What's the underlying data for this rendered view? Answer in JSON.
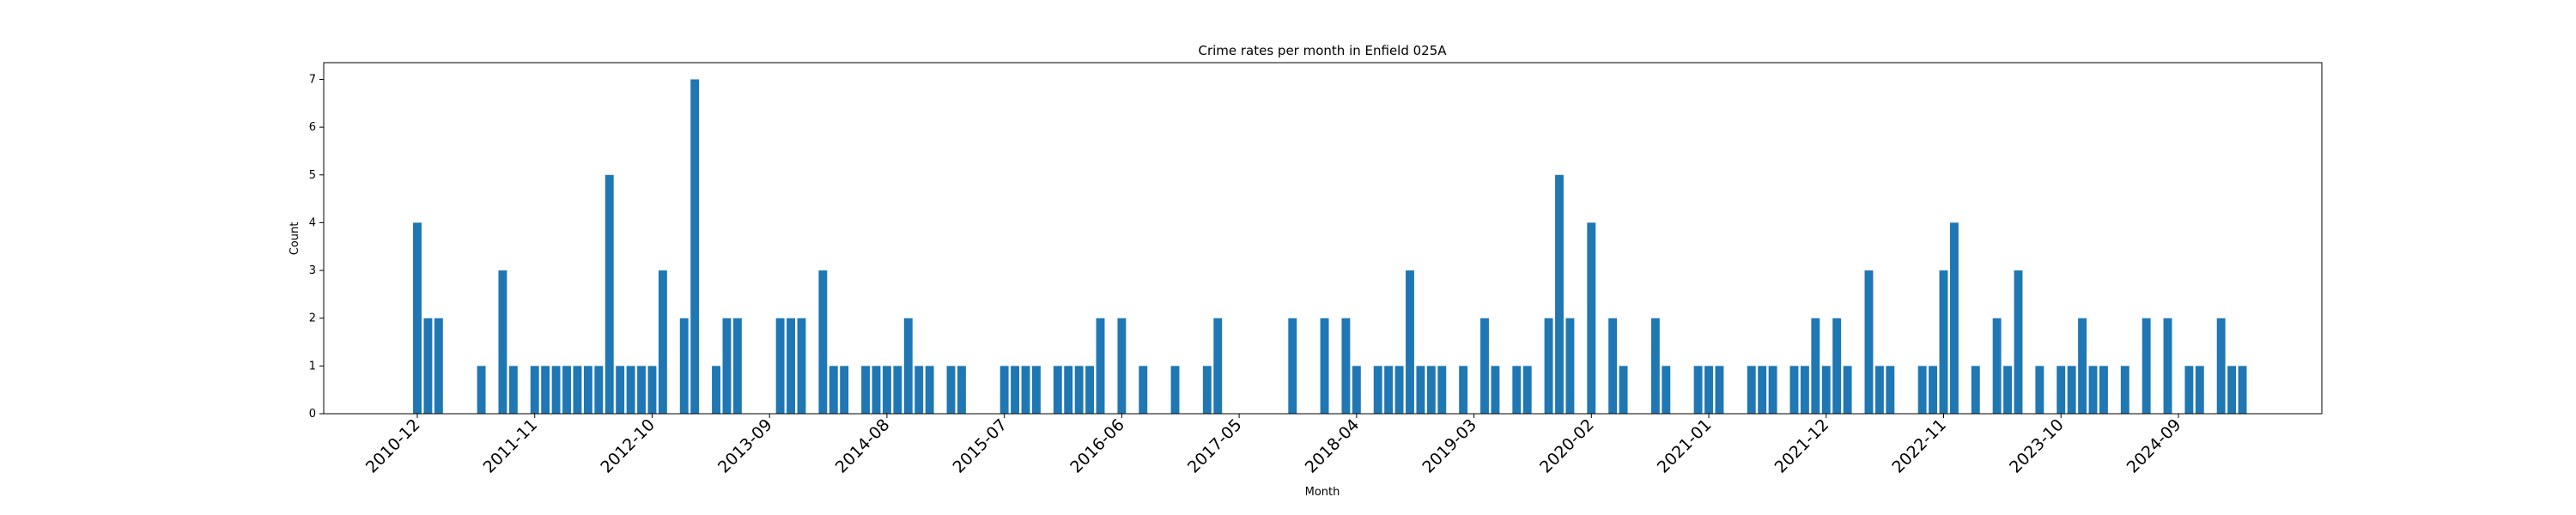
{
  "chart_data": {
    "type": "bar",
    "title": "Crime rates per month in Enfield 025A",
    "xlabel": "Month",
    "ylabel": "Count",
    "ylim": [
      0,
      7.35
    ],
    "yticks": [
      0,
      1,
      2,
      3,
      4,
      5,
      6,
      7
    ],
    "xtick_labels": [
      "2010-12",
      "2011-11",
      "2012-10",
      "2013-09",
      "2014-08",
      "2015-07",
      "2016-06",
      "2017-05",
      "2018-04",
      "2019-03",
      "2020-02",
      "2021-01",
      "2021-12",
      "2022-11",
      "2023-10",
      "2024-09"
    ],
    "color": "#1f77b4",
    "grid": false,
    "bars": [
      {
        "x": "2010-12",
        "y": 4
      },
      {
        "x": "2011-01",
        "y": 2
      },
      {
        "x": "2011-02",
        "y": 2
      },
      {
        "x": "2011-06",
        "y": 1
      },
      {
        "x": "2011-08",
        "y": 3
      },
      {
        "x": "2011-09",
        "y": 1
      },
      {
        "x": "2011-11",
        "y": 1
      },
      {
        "x": "2011-12",
        "y": 1
      },
      {
        "x": "2012-01",
        "y": 1
      },
      {
        "x": "2012-02",
        "y": 1
      },
      {
        "x": "2012-03",
        "y": 1
      },
      {
        "x": "2012-04",
        "y": 1
      },
      {
        "x": "2012-05",
        "y": 1
      },
      {
        "x": "2012-06",
        "y": 5
      },
      {
        "x": "2012-07",
        "y": 1
      },
      {
        "x": "2012-08",
        "y": 1
      },
      {
        "x": "2012-09",
        "y": 1
      },
      {
        "x": "2012-10",
        "y": 1
      },
      {
        "x": "2012-11",
        "y": 3
      },
      {
        "x": "2013-01",
        "y": 2
      },
      {
        "x": "2013-02",
        "y": 7
      },
      {
        "x": "2013-04",
        "y": 1
      },
      {
        "x": "2013-05",
        "y": 2
      },
      {
        "x": "2013-06",
        "y": 2
      },
      {
        "x": "2013-10",
        "y": 2
      },
      {
        "x": "2013-11",
        "y": 2
      },
      {
        "x": "2013-12",
        "y": 2
      },
      {
        "x": "2014-02",
        "y": 3
      },
      {
        "x": "2014-03",
        "y": 1
      },
      {
        "x": "2014-04",
        "y": 1
      },
      {
        "x": "2014-06",
        "y": 1
      },
      {
        "x": "2014-07",
        "y": 1
      },
      {
        "x": "2014-08",
        "y": 1
      },
      {
        "x": "2014-09",
        "y": 1
      },
      {
        "x": "2014-10",
        "y": 2
      },
      {
        "x": "2014-11",
        "y": 1
      },
      {
        "x": "2014-12",
        "y": 1
      },
      {
        "x": "2015-02",
        "y": 1
      },
      {
        "x": "2015-03",
        "y": 1
      },
      {
        "x": "2015-07",
        "y": 1
      },
      {
        "x": "2015-08",
        "y": 1
      },
      {
        "x": "2015-09",
        "y": 1
      },
      {
        "x": "2015-10",
        "y": 1
      },
      {
        "x": "2015-12",
        "y": 1
      },
      {
        "x": "2016-01",
        "y": 1
      },
      {
        "x": "2016-02",
        "y": 1
      },
      {
        "x": "2016-03",
        "y": 1
      },
      {
        "x": "2016-04",
        "y": 2
      },
      {
        "x": "2016-06",
        "y": 2
      },
      {
        "x": "2016-08",
        "y": 1
      },
      {
        "x": "2016-11",
        "y": 1
      },
      {
        "x": "2017-02",
        "y": 1
      },
      {
        "x": "2017-03",
        "y": 2
      },
      {
        "x": "2017-10",
        "y": 2
      },
      {
        "x": "2018-01",
        "y": 2
      },
      {
        "x": "2018-03",
        "y": 2
      },
      {
        "x": "2018-04",
        "y": 1
      },
      {
        "x": "2018-06",
        "y": 1
      },
      {
        "x": "2018-07",
        "y": 1
      },
      {
        "x": "2018-08",
        "y": 1
      },
      {
        "x": "2018-09",
        "y": 3
      },
      {
        "x": "2018-10",
        "y": 1
      },
      {
        "x": "2018-11",
        "y": 1
      },
      {
        "x": "2018-12",
        "y": 1
      },
      {
        "x": "2019-02",
        "y": 1
      },
      {
        "x": "2019-04",
        "y": 2
      },
      {
        "x": "2019-05",
        "y": 1
      },
      {
        "x": "2019-07",
        "y": 1
      },
      {
        "x": "2019-08",
        "y": 1
      },
      {
        "x": "2019-10",
        "y": 2
      },
      {
        "x": "2019-11",
        "y": 5
      },
      {
        "x": "2019-12",
        "y": 2
      },
      {
        "x": "2020-02",
        "y": 4
      },
      {
        "x": "2020-04",
        "y": 2
      },
      {
        "x": "2020-05",
        "y": 1
      },
      {
        "x": "2020-08",
        "y": 2
      },
      {
        "x": "2020-09",
        "y": 1
      },
      {
        "x": "2020-12",
        "y": 1
      },
      {
        "x": "2021-01",
        "y": 1
      },
      {
        "x": "2021-02",
        "y": 1
      },
      {
        "x": "2021-05",
        "y": 1
      },
      {
        "x": "2021-06",
        "y": 1
      },
      {
        "x": "2021-07",
        "y": 1
      },
      {
        "x": "2021-09",
        "y": 1
      },
      {
        "x": "2021-10",
        "y": 1
      },
      {
        "x": "2021-11",
        "y": 2
      },
      {
        "x": "2021-12",
        "y": 1
      },
      {
        "x": "2022-01",
        "y": 2
      },
      {
        "x": "2022-02",
        "y": 1
      },
      {
        "x": "2022-04",
        "y": 3
      },
      {
        "x": "2022-05",
        "y": 1
      },
      {
        "x": "2022-06",
        "y": 1
      },
      {
        "x": "2022-09",
        "y": 1
      },
      {
        "x": "2022-10",
        "y": 1
      },
      {
        "x": "2022-11",
        "y": 3
      },
      {
        "x": "2022-12",
        "y": 4
      },
      {
        "x": "2023-02",
        "y": 1
      },
      {
        "x": "2023-04",
        "y": 2
      },
      {
        "x": "2023-05",
        "y": 1
      },
      {
        "x": "2023-06",
        "y": 3
      },
      {
        "x": "2023-08",
        "y": 1
      },
      {
        "x": "2023-10",
        "y": 1
      },
      {
        "x": "2023-11",
        "y": 1
      },
      {
        "x": "2023-12",
        "y": 2
      },
      {
        "x": "2024-01",
        "y": 1
      },
      {
        "x": "2024-02",
        "y": 1
      },
      {
        "x": "2024-04",
        "y": 1
      },
      {
        "x": "2024-06",
        "y": 2
      },
      {
        "x": "2024-08",
        "y": 2
      },
      {
        "x": "2024-10",
        "y": 1
      },
      {
        "x": "2024-11",
        "y": 1
      },
      {
        "x": "2025-01",
        "y": 2
      },
      {
        "x": "2025-02",
        "y": 1
      },
      {
        "x": "2025-03",
        "y": 1
      }
    ]
  }
}
